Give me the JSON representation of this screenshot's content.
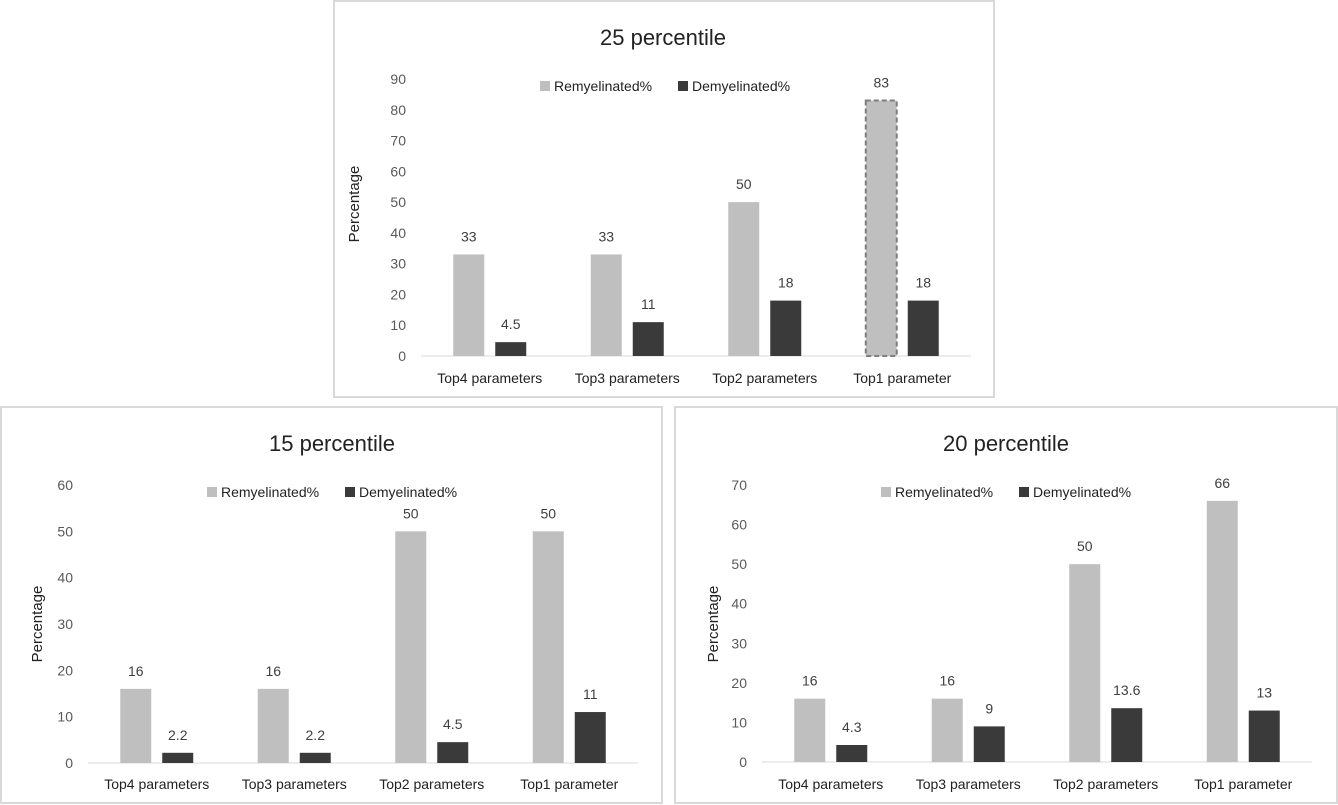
{
  "chart_data": [
    {
      "type": "bar",
      "title": "25 percentile",
      "xlabel": "",
      "ylabel": "Percentage",
      "ylim": [
        0,
        90
      ],
      "ytick_step": 10,
      "categories": [
        "Top4 parameters",
        "Top3 parameters",
        "Top2 parameters",
        "Top1 parameter"
      ],
      "series": [
        {
          "name": "Remyelinated%",
          "values": [
            33,
            33,
            50,
            83
          ],
          "labels": [
            "33",
            "33",
            "50",
            "83"
          ],
          "color": "#bfbfbf"
        },
        {
          "name": "Demyelinated%",
          "values": [
            4.5,
            11,
            18,
            18
          ],
          "labels": [
            "4.5",
            "11",
            "18",
            "18"
          ],
          "color": "#3a3a3a"
        }
      ],
      "highlight": {
        "series": 0,
        "index": 3,
        "style": "dashed-outline",
        "color": "#7f7f7f"
      },
      "legend": "top-center",
      "grid": false
    },
    {
      "type": "bar",
      "title": "15 percentile",
      "xlabel": "",
      "ylabel": "Percentage",
      "ylim": [
        0,
        60
      ],
      "ytick_step": 10,
      "categories": [
        "Top4 parameters",
        "Top3 parameters",
        "Top2 parameters",
        "Top1 parameter"
      ],
      "series": [
        {
          "name": "Remyelinated%",
          "values": [
            16,
            16,
            50,
            50
          ],
          "labels": [
            "16",
            "16",
            "50",
            "50"
          ],
          "color": "#bfbfbf"
        },
        {
          "name": "Demyelinated%",
          "values": [
            2.2,
            2.2,
            4.5,
            11
          ],
          "labels": [
            "2.2",
            "2.2",
            "4.5",
            "11"
          ],
          "color": "#3a3a3a"
        }
      ],
      "legend": "top-center",
      "grid": false
    },
    {
      "type": "bar",
      "title": "20 percentile",
      "xlabel": "",
      "ylabel": "Percentage",
      "ylim": [
        0,
        70
      ],
      "ytick_step": 10,
      "categories": [
        "Top4 parameters",
        "Top3 parameters",
        "Top2 parameters",
        "Top1 parameter"
      ],
      "series": [
        {
          "name": "Remyelinated%",
          "values": [
            16,
            16,
            50,
            66
          ],
          "labels": [
            "16",
            "16",
            "50",
            "66"
          ],
          "color": "#bfbfbf"
        },
        {
          "name": "Demyelinated%",
          "values": [
            4.3,
            9,
            13.6,
            13
          ],
          "labels": [
            "4.3",
            "9",
            "13.6",
            "13"
          ],
          "color": "#3a3a3a"
        }
      ],
      "legend": "top-center",
      "grid": false
    }
  ]
}
